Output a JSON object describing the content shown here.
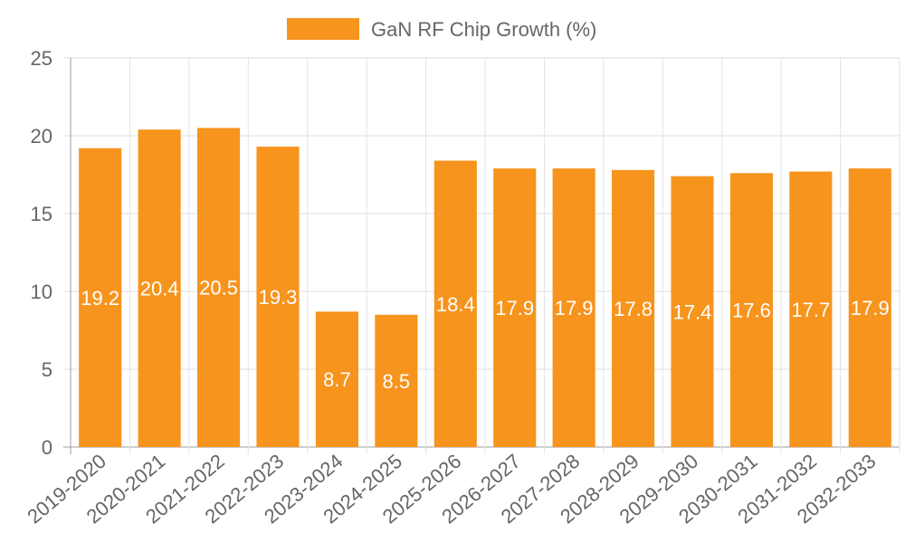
{
  "chart_data": {
    "type": "bar",
    "title": "",
    "xlabel": "",
    "ylabel": "",
    "categories": [
      "2019-2020",
      "2020-2021",
      "2021-2022",
      "2022-2023",
      "2023-2024",
      "2024-2025",
      "2025-2026",
      "2026-2027",
      "2027-2028",
      "2028-2029",
      "2029-2030",
      "2030-2031",
      "2031-2032",
      "2032-2033"
    ],
    "series": [
      {
        "name": "GaN RF Chip Growth (%)",
        "color": "#f7941d",
        "values": [
          19.2,
          20.4,
          20.5,
          19.3,
          8.7,
          8.5,
          18.4,
          17.9,
          17.9,
          17.8,
          17.4,
          17.6,
          17.7,
          17.9
        ]
      }
    ],
    "ylim": [
      0,
      25
    ],
    "yticks": [
      0,
      5,
      10,
      15,
      20,
      25
    ],
    "grid": true,
    "legend_position": "top-center",
    "data_labels": true
  }
}
